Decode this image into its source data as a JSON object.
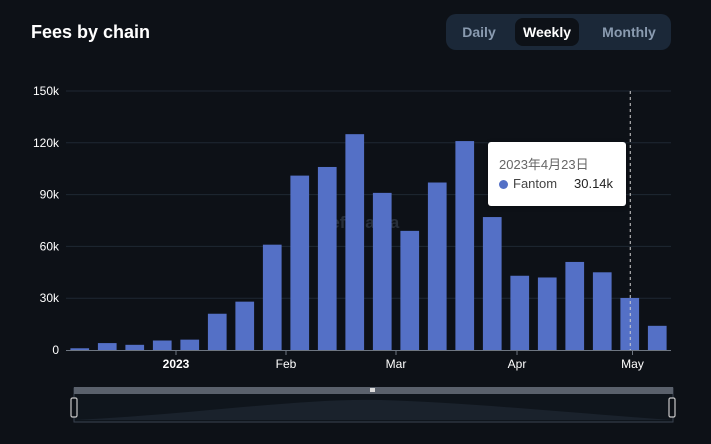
{
  "title": "Fees by chain",
  "toggle": [
    {
      "label": "Daily",
      "active": false
    },
    {
      "label": "Weekly",
      "active": true
    },
    {
      "label": "Monthly",
      "active": false
    }
  ],
  "watermark": "DefiLlama",
  "tooltip": {
    "date": "2023年4月23日",
    "series": "Fantom",
    "value": "30.14k"
  },
  "colors": {
    "series": "#5470c6",
    "background": "#0d1117",
    "axis_text": "#ffffff"
  },
  "chart_data": {
    "type": "bar",
    "series": [
      {
        "name": "Fantom",
        "values": [
          1000,
          4000,
          3000,
          5500,
          6000,
          21000,
          28000,
          61000,
          101000,
          106000,
          125000,
          91000,
          69000,
          97000,
          121000,
          77000,
          43000,
          42000,
          51000,
          45000,
          30140,
          14000
        ]
      }
    ],
    "yticks": [
      "0",
      "30k",
      "60k",
      "90k",
      "120k",
      "150k"
    ],
    "ylim": [
      0,
      150000
    ],
    "xticks": [
      {
        "label": "2023",
        "bold": true,
        "after_bar": 3.5
      },
      {
        "label": "Feb",
        "bold": false,
        "after_bar": 7.5
      },
      {
        "label": "Mar",
        "bold": false,
        "after_bar": 11.5
      },
      {
        "label": "Apr",
        "bold": false,
        "after_bar": 15.9
      },
      {
        "label": "May",
        "bold": false,
        "after_bar": 20.1
      }
    ],
    "hover_index": 20,
    "grid": true,
    "legend": "none",
    "has_zoom_slider": true
  }
}
